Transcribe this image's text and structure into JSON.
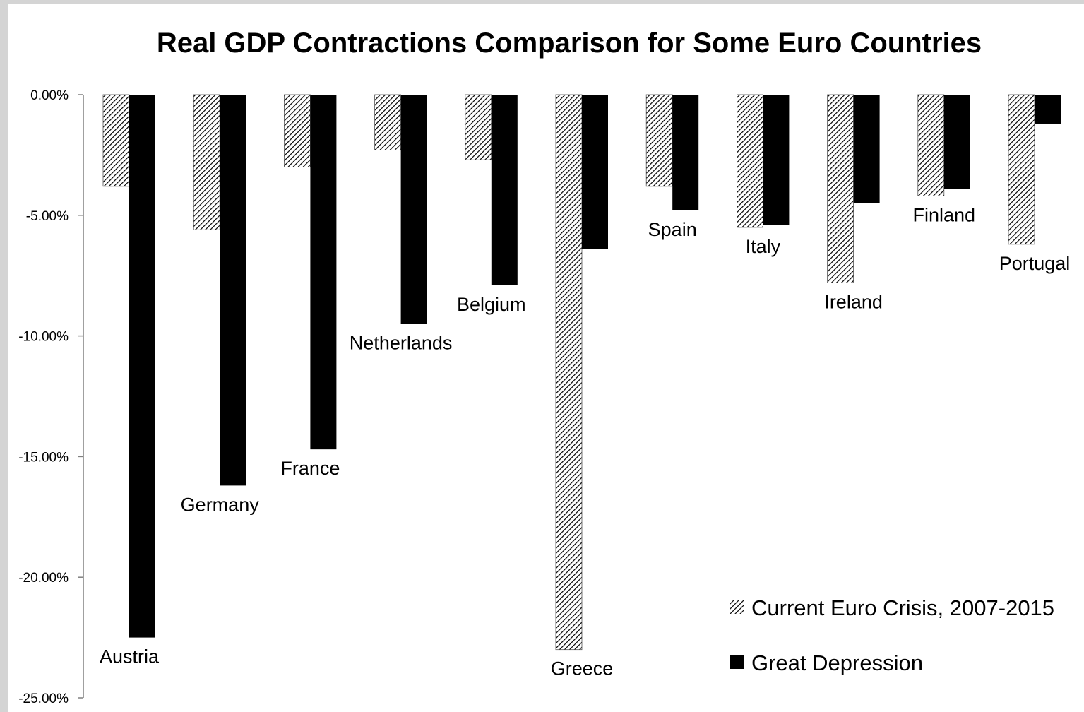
{
  "chart_data": {
    "type": "bar",
    "title": "Real GDP Contractions Comparison for Some Euro Countries",
    "xlabel": "",
    "ylabel": "",
    "categories": [
      "Austria",
      "Germany",
      "France",
      "Netherlands",
      "Belgium",
      "Greece",
      "Spain",
      "Italy",
      "Ireland",
      "Finland",
      "Portugal"
    ],
    "series": [
      {
        "name": "Current Euro Crisis, 2007-2015",
        "pattern": "hatched",
        "color": "#000000",
        "values": [
          -3.8,
          -5.6,
          -3.0,
          -2.3,
          -2.7,
          -23.0,
          -3.8,
          -5.5,
          -7.8,
          -4.2,
          -6.2
        ]
      },
      {
        "name": "Great Depression",
        "pattern": "solid",
        "color": "#000000",
        "values": [
          -22.5,
          -16.2,
          -14.7,
          -9.5,
          -7.9,
          -6.4,
          -4.8,
          -5.4,
          -4.5,
          -3.9,
          -1.2
        ]
      }
    ],
    "ylim": [
      -25,
      0
    ],
    "yticks": [
      "0.00%",
      "-5.00%",
      "-10.00%",
      "-15.00%",
      "-20.00%",
      "-25.00%"
    ],
    "grid": false,
    "legend_position": "bottom-right"
  }
}
